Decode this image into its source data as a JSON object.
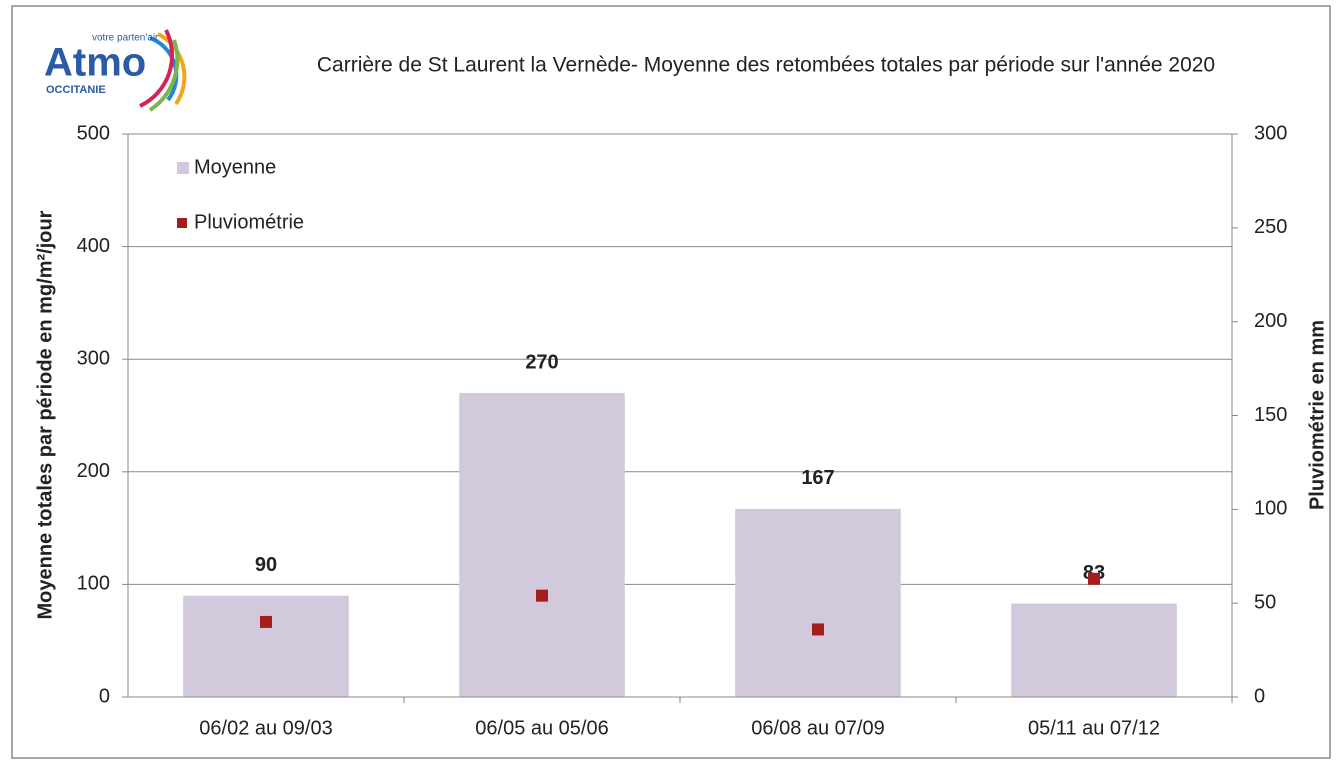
{
  "logo": {
    "name": "Atmo",
    "tagline": "votre parten'air",
    "region": "OCCITANIE"
  },
  "chart_data": {
    "type": "bar",
    "title": "Carrière de St Laurent la Vernède- Moyenne des retombées totales par période sur l'année 2020",
    "y_label": "Moyenne totales par période en mg/m²/jour",
    "y2_label": "Pluviométrie en mm",
    "categories": [
      "06/02 au 09/03",
      "06/05 au 05/06",
      "06/08 au 07/09",
      "05/11 au 07/12"
    ],
    "series": [
      {
        "name": "Moyenne",
        "type": "bar",
        "color": "#d2cadc",
        "values": [
          90,
          270,
          167,
          83
        ]
      },
      {
        "name": "Pluviométrie",
        "type": "marker",
        "axis": "y2",
        "color": "#a51c1c",
        "values": [
          40,
          54,
          36,
          63
        ]
      }
    ],
    "ylim": [
      0,
      500
    ],
    "yticks": [
      0,
      100,
      200,
      300,
      400,
      500
    ],
    "y2lim": [
      0,
      300
    ],
    "y2ticks": [
      0,
      50,
      100,
      150,
      200,
      250,
      300
    ],
    "grid": true,
    "legend": "top-left"
  }
}
